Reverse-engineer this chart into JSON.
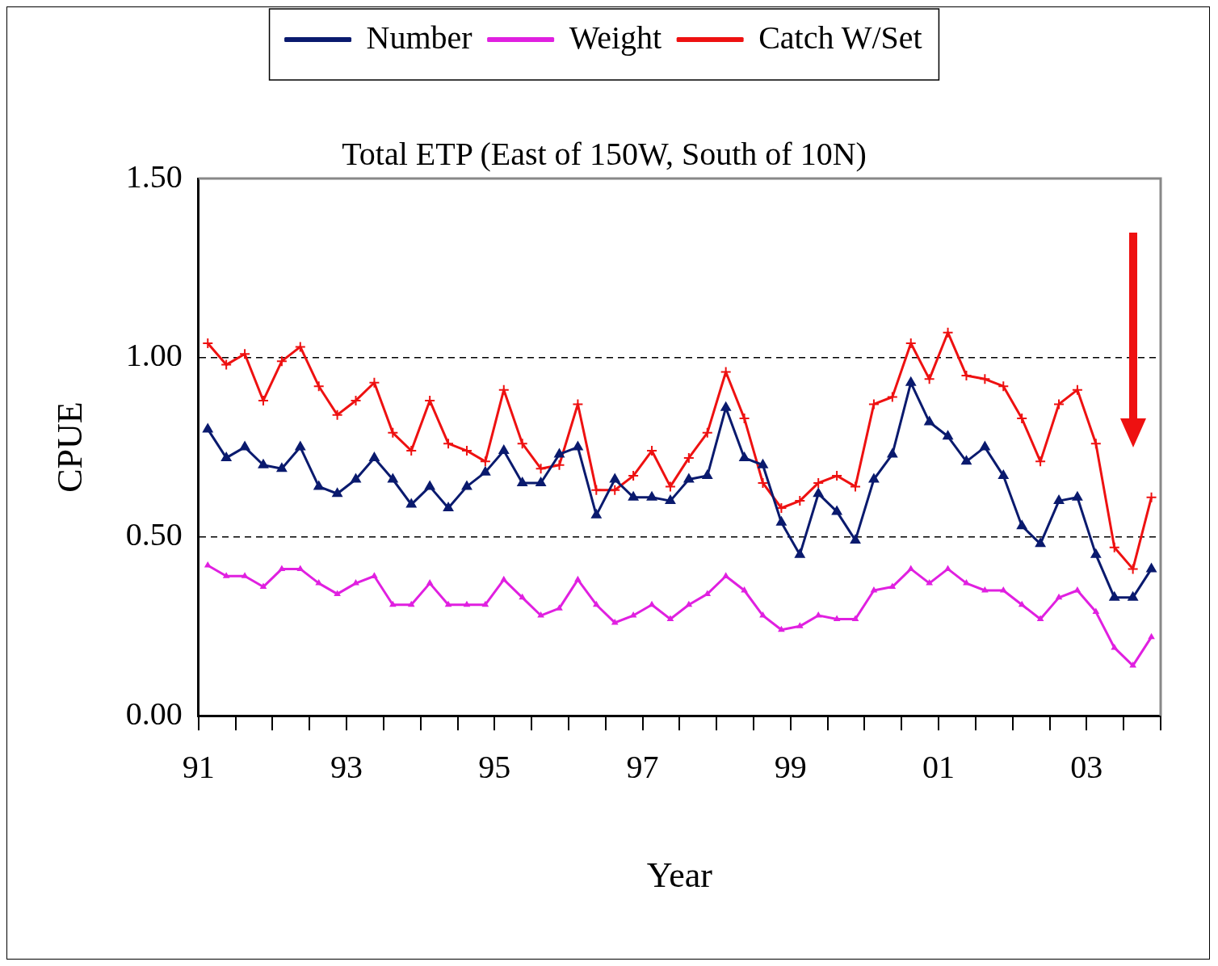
{
  "chart_data": {
    "type": "line",
    "title": "Total ETP (East of 150W, South of 10N)",
    "xlabel": "Year",
    "ylabel": "CPUE",
    "x": [
      1991.125,
      1991.375,
      1991.625,
      1991.875,
      1992.125,
      1992.375,
      1992.625,
      1992.875,
      1993.125,
      1993.375,
      1993.625,
      1993.875,
      1994.125,
      1994.375,
      1994.625,
      1994.875,
      1995.125,
      1995.375,
      1995.625,
      1995.875,
      1996.125,
      1996.375,
      1996.625,
      1996.875,
      1997.125,
      1997.375,
      1997.625,
      1997.875,
      1998.125,
      1998.375,
      1998.625,
      1998.875,
      1999.125,
      1999.375,
      1999.625,
      1999.875,
      2000.125,
      2000.375,
      2000.625,
      2000.875,
      2001.125,
      2001.375,
      2001.625,
      2001.875,
      2002.125,
      2002.375,
      2002.625,
      2002.875,
      2003.125,
      2003.375,
      2003.625,
      2003.875
    ],
    "series": [
      {
        "name": "Number",
        "color": "#0a1a6e",
        "marker": "triangle",
        "values": [
          0.8,
          0.72,
          0.75,
          0.7,
          0.69,
          0.75,
          0.64,
          0.62,
          0.66,
          0.72,
          0.66,
          0.59,
          0.64,
          0.58,
          0.64,
          0.68,
          0.74,
          0.65,
          0.65,
          0.73,
          0.75,
          0.56,
          0.66,
          0.61,
          0.61,
          0.6,
          0.66,
          0.67,
          0.86,
          0.72,
          0.7,
          0.54,
          0.45,
          0.62,
          0.57,
          0.49,
          0.66,
          0.73,
          0.93,
          0.82,
          0.78,
          0.71,
          0.75,
          0.67,
          0.53,
          0.48,
          0.6,
          0.61,
          0.45,
          0.33,
          0.33,
          0.41
        ]
      },
      {
        "name": "Weight",
        "color": "#e020e0",
        "marker": "triangle",
        "values": [
          0.42,
          0.39,
          0.39,
          0.36,
          0.41,
          0.41,
          0.37,
          0.34,
          0.37,
          0.39,
          0.31,
          0.31,
          0.37,
          0.31,
          0.31,
          0.31,
          0.38,
          0.33,
          0.28,
          0.3,
          0.38,
          0.31,
          0.26,
          0.28,
          0.31,
          0.27,
          0.31,
          0.34,
          0.39,
          0.35,
          0.28,
          0.24,
          0.25,
          0.28,
          0.27,
          0.27,
          0.35,
          0.36,
          0.41,
          0.37,
          0.41,
          0.37,
          0.35,
          0.35,
          0.31,
          0.27,
          0.33,
          0.35,
          0.29,
          0.19,
          0.14,
          0.22
        ]
      },
      {
        "name": "Catch W/Set",
        "color": "#ee1111",
        "marker": "cross",
        "values": [
          1.04,
          0.98,
          1.01,
          0.88,
          0.99,
          1.03,
          0.92,
          0.84,
          0.88,
          0.93,
          0.79,
          0.74,
          0.88,
          0.76,
          0.74,
          0.71,
          0.91,
          0.76,
          0.69,
          0.7,
          0.87,
          0.63,
          0.63,
          0.67,
          0.74,
          0.64,
          0.72,
          0.79,
          0.96,
          0.83,
          0.65,
          0.58,
          0.6,
          0.65,
          0.67,
          0.64,
          0.87,
          0.89,
          1.04,
          0.94,
          1.07,
          0.95,
          0.94,
          0.92,
          0.83,
          0.71,
          0.87,
          0.91,
          0.76,
          0.47,
          0.41,
          0.61
        ]
      }
    ],
    "xlim": [
      1991,
      2004
    ],
    "xticks": [
      {
        "value": 1991,
        "label": "91"
      },
      {
        "value": 1993,
        "label": "93"
      },
      {
        "value": 1995,
        "label": "95"
      },
      {
        "value": 1997,
        "label": "97"
      },
      {
        "value": 1999,
        "label": "99"
      },
      {
        "value": 2001,
        "label": "01"
      },
      {
        "value": 2003,
        "label": "03"
      }
    ],
    "ylim": [
      0,
      1.5
    ],
    "yticks": [
      {
        "value": 0,
        "label": "0.00"
      },
      {
        "value": 0.5,
        "label": "0.50"
      },
      {
        "value": 1,
        "label": "1.00"
      },
      {
        "value": 1.5,
        "label": "1.50"
      }
    ],
    "grid": "y",
    "line_style": "solid",
    "legend": "top"
  }
}
